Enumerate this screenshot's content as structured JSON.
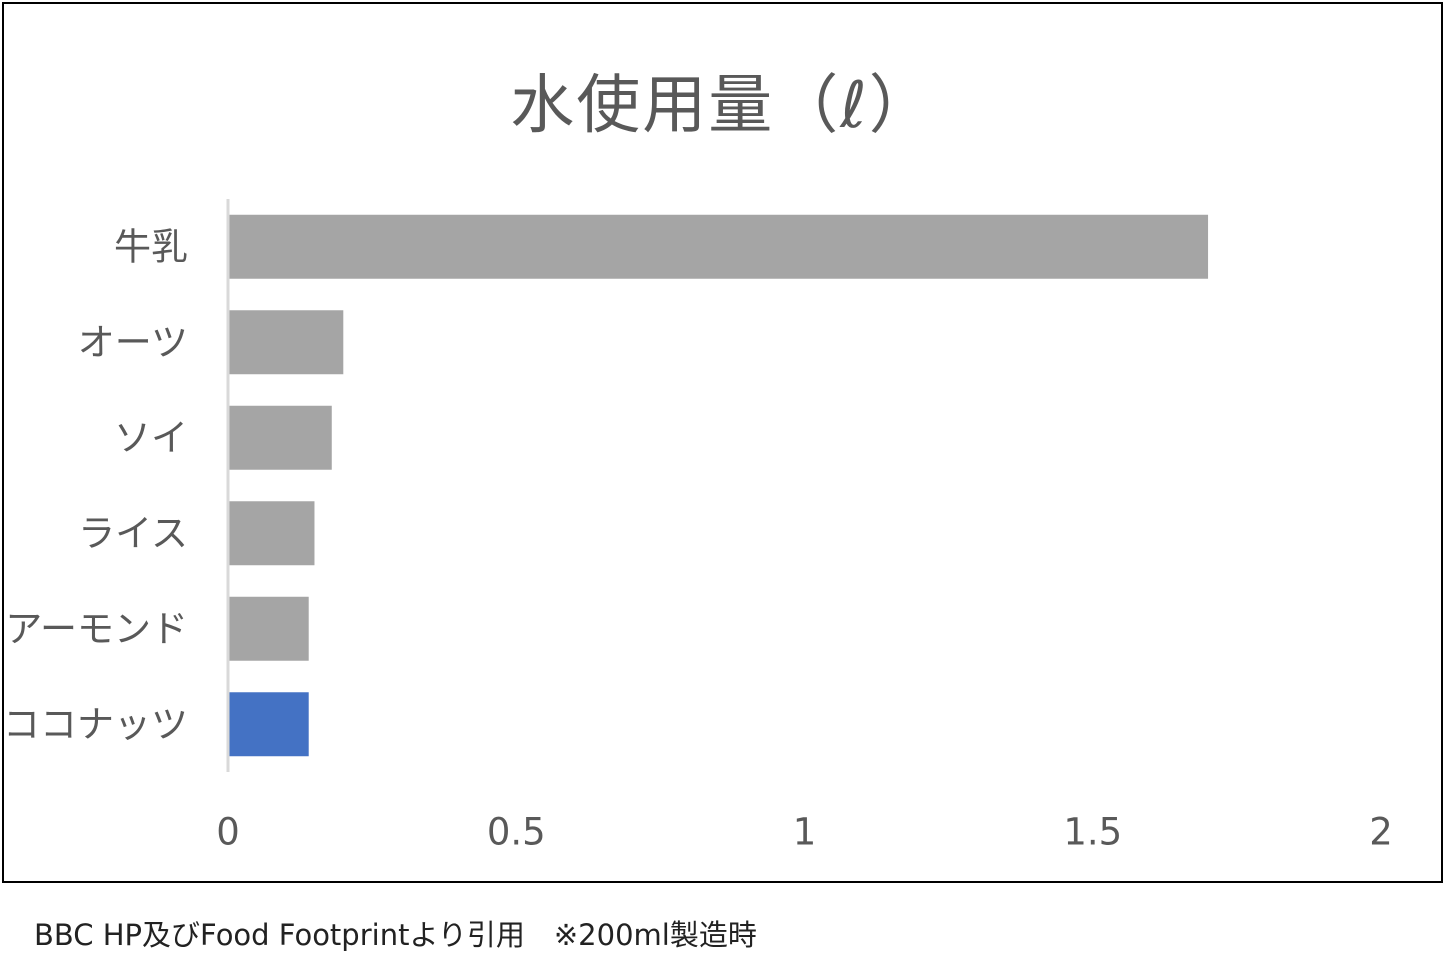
{
  "chart_data": {
    "type": "bar",
    "orientation": "horizontal",
    "title": "水使用量（ℓ）",
    "categories": [
      "牛乳",
      "オーツ",
      "ソイ",
      "ライス",
      "アーモンド",
      "ココナッツ"
    ],
    "values": [
      1.7,
      0.2,
      0.18,
      0.15,
      0.14,
      0.14
    ],
    "highlight_index": 5,
    "colors": {
      "default_bar": "#a5a5a5",
      "highlight_bar": "#4472c4",
      "axis_line": "#d9d9d9",
      "text": "#595959"
    },
    "xlim": [
      0,
      2
    ],
    "xticks": [
      "0",
      "0.5",
      "1",
      "1.5",
      "2"
    ],
    "xtick_values": [
      0,
      0.5,
      1,
      1.5,
      2
    ],
    "grid": false,
    "legend": "none"
  },
  "footer": {
    "source_note": "BBC HP及びFood Footprintより引用　※200ml製造時"
  }
}
